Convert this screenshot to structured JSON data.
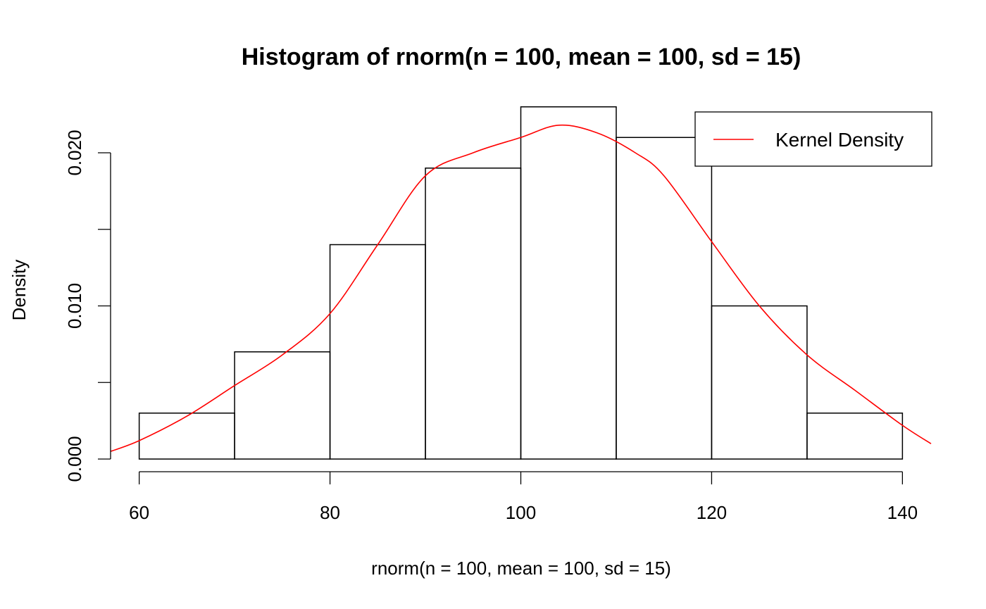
{
  "chart_data": {
    "type": "histogram",
    "title": "Histogram of rnorm(n = 100, mean = 100, sd = 15)",
    "xlabel": "rnorm(n = 100, mean = 100, sd = 15)",
    "ylabel": "Density",
    "x_ticks": [
      60,
      80,
      100,
      120,
      140
    ],
    "y_ticks": [
      "0.000",
      "0.010",
      "0.020"
    ],
    "bins": [
      {
        "from": 60,
        "to": 70,
        "density": 0.003
      },
      {
        "from": 70,
        "to": 80,
        "density": 0.007
      },
      {
        "from": 80,
        "to": 90,
        "density": 0.014
      },
      {
        "from": 90,
        "to": 100,
        "density": 0.019
      },
      {
        "from": 100,
        "to": 110,
        "density": 0.023
      },
      {
        "from": 110,
        "to": 120,
        "density": 0.021
      },
      {
        "from": 120,
        "to": 130,
        "density": 0.01
      },
      {
        "from": 130,
        "to": 140,
        "density": 0.003
      }
    ],
    "series": [
      {
        "name": "Kernel Density",
        "color": "#ff0000",
        "x": [
          57,
          60,
          65,
          70,
          75,
          80,
          85,
          90,
          95,
          100,
          104,
          108,
          112,
          115,
          120,
          125,
          130,
          135,
          140,
          143
        ],
        "y": [
          0.0005,
          0.0012,
          0.0028,
          0.0048,
          0.0068,
          0.0095,
          0.014,
          0.0185,
          0.02,
          0.021,
          0.0218,
          0.0213,
          0.02,
          0.0185,
          0.0142,
          0.01,
          0.0068,
          0.0045,
          0.0022,
          0.001
        ]
      }
    ],
    "xlim": [
      57,
      143
    ],
    "ylim": [
      0,
      0.024
    ],
    "legend_position": "top-right",
    "grid": false
  }
}
